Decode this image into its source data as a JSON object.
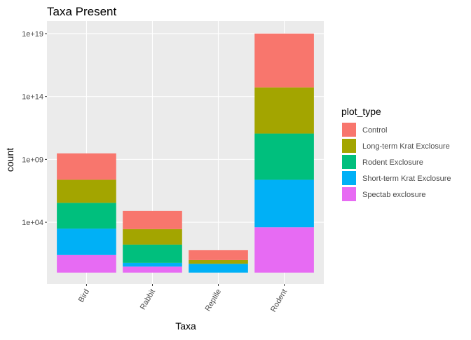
{
  "chart_data": {
    "type": "bar",
    "stacked": true,
    "log_scale": true,
    "grid": true,
    "title": "Taxa Present",
    "x_label": "Taxa",
    "y_label": "count",
    "legend_title": "plot_type",
    "legend_position": "right",
    "categories": [
      "Bird",
      "Rabbit",
      "Reptile",
      "Rodent"
    ],
    "series": [
      {
        "name": "Control",
        "color": "#F8766D",
        "values": [
          126,
          28,
          6,
          19000
        ]
      },
      {
        "name": "Long-term Krat Exclosure",
        "color": "#A3A500",
        "values": [
          68,
          17,
          2,
          4700
        ]
      },
      {
        "name": "Rodent Exclosure",
        "color": "#00BF7D",
        "values": [
          112,
          28,
          null,
          4700
        ]
      },
      {
        "name": "Short-term Krat Exclosure",
        "color": "#00B0F6",
        "values": [
          126,
          2,
          5,
          6000
        ]
      },
      {
        "name": "Spectab exclosure",
        "color": "#E76BF3",
        "values": [
          25,
          3,
          null,
          4000
        ]
      }
    ],
    "ylim": [
      0.126,
      1e+20
    ],
    "yticks": [
      {
        "value": 10000,
        "label": "1e+04"
      },
      {
        "value": 1000000000,
        "label": "1e+09"
      },
      {
        "value": 100000000000000,
        "label": "1e+14"
      },
      {
        "value": 10000000000000000000,
        "label": "1e+19"
      }
    ]
  }
}
